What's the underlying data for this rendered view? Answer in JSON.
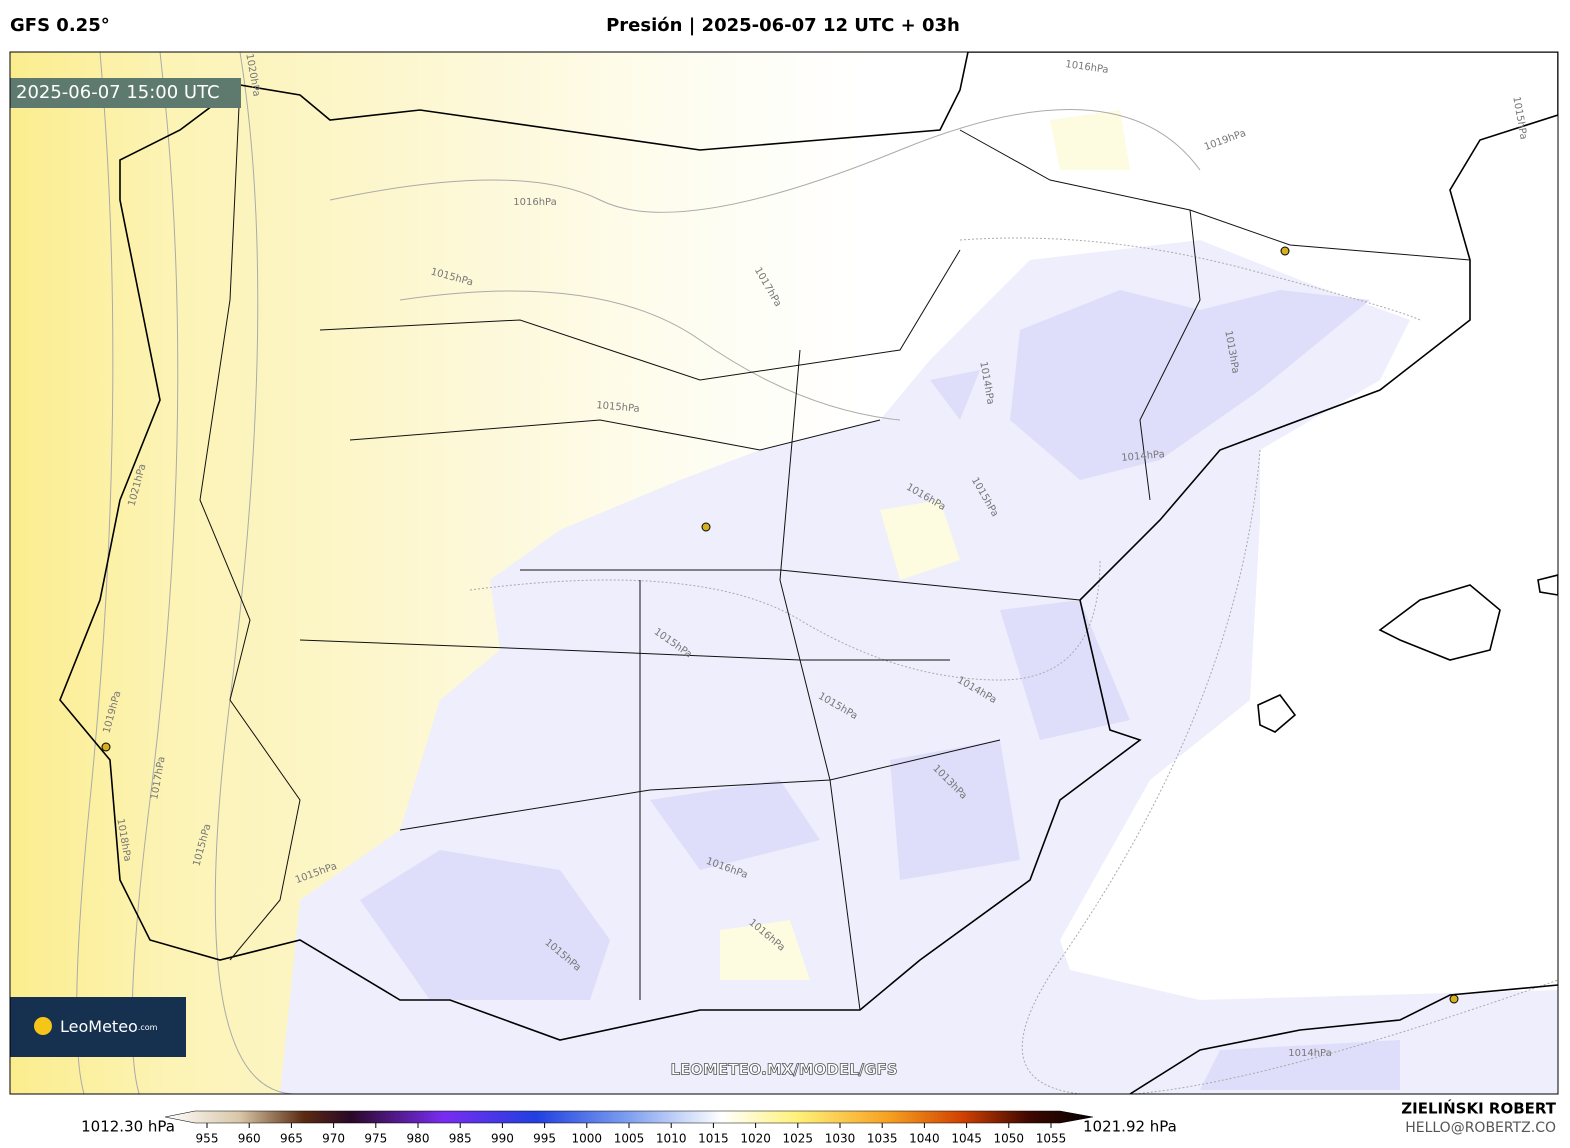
{
  "header": {
    "model": "GFS 0.25°",
    "title": "Presión | 2025-06-07 12 UTC + 03h"
  },
  "map": {
    "timestamp": "2025-06-07 15:00 UTC",
    "watermark": "LEOMETEO.MX/MODEL/GFS",
    "contour_labels": [
      "1016hPa",
      "1019hPa",
      "1015hPa",
      "1020hPa",
      "1016hPa",
      "1015hPa",
      "1017hPa",
      "1013hPa",
      "1014hPa",
      "1015hPa",
      "1014hPa",
      "1021hPa",
      "1016hPa",
      "1015hPa",
      "1015hPa",
      "1014hPa",
      "1015hPa",
      "1019hPa",
      "1017hPa",
      "1018hPa",
      "1015hPa",
      "1015hPa",
      "1016hPa",
      "1013hPa",
      "1015hPa",
      "1014hPa",
      "1016hPa"
    ]
  },
  "logo": {
    "name": "LeoMeteo",
    "suffix": ".com"
  },
  "colorbar": {
    "min_label": "1012.30 hPa",
    "max_label": "1021.92 hPa",
    "ticks": [
      955,
      960,
      965,
      970,
      975,
      980,
      985,
      990,
      995,
      1000,
      1005,
      1010,
      1015,
      1020,
      1025,
      1030,
      1035,
      1040,
      1045,
      1050,
      1055
    ]
  },
  "footer": {
    "author": "ZIELIŃSKI ROBERT",
    "email": "HELLO@ROBERTZ.CO"
  }
}
